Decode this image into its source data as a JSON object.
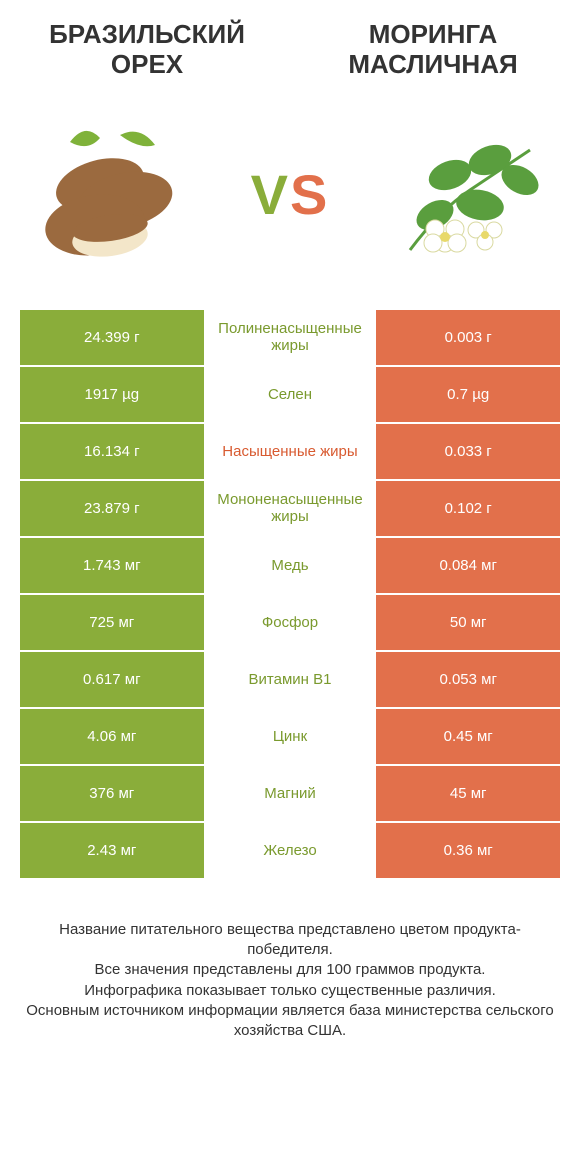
{
  "header": {
    "left_title": "БРАЗИЛЬСКИЙ ОРЕХ",
    "right_title": "МОРИНГА МАСЛИЧНАЯ",
    "vs_v": "V",
    "vs_s": "S"
  },
  "colors": {
    "left_bg": "#8aad3a",
    "right_bg": "#e2704b",
    "mid_green": "#7a9a2e",
    "mid_orange": "#d85a30",
    "text_dark": "#333333"
  },
  "table": {
    "type": "comparison-table",
    "rows": [
      {
        "left": "24.399 г",
        "mid": "Полиненасыщенные жиры",
        "mid_color": "mid_green",
        "right": "0.003 г"
      },
      {
        "left": "1917 µg",
        "mid": "Селен",
        "mid_color": "mid_green",
        "right": "0.7 µg"
      },
      {
        "left": "16.134 г",
        "mid": "Насыщенные жиры",
        "mid_color": "mid_orange",
        "right": "0.033 г"
      },
      {
        "left": "23.879 г",
        "mid": "Мононенасыщенные жиры",
        "mid_color": "mid_green",
        "right": "0.102 г"
      },
      {
        "left": "1.743 мг",
        "mid": "Медь",
        "mid_color": "mid_green",
        "right": "0.084 мг"
      },
      {
        "left": "725 мг",
        "mid": "Фосфор",
        "mid_color": "mid_green",
        "right": "50 мг"
      },
      {
        "left": "0.617 мг",
        "mid": "Витамин B1",
        "mid_color": "mid_green",
        "right": "0.053 мг"
      },
      {
        "left": "4.06 мг",
        "mid": "Цинк",
        "mid_color": "mid_green",
        "right": "0.45 мг"
      },
      {
        "left": "376 мг",
        "mid": "Магний",
        "mid_color": "mid_green",
        "right": "45 мг"
      },
      {
        "left": "2.43 мг",
        "mid": "Железо",
        "mid_color": "mid_green",
        "right": "0.36 мг"
      }
    ]
  },
  "footer": {
    "line1": "Название питательного вещества представлено цветом продукта-победителя.",
    "line2": "Все значения представлены для 100 граммов продукта.",
    "line3": "Инфографика показывает только существенные различия.",
    "line4": "Основным источником информации является база министерства сельского хозяйства США."
  }
}
